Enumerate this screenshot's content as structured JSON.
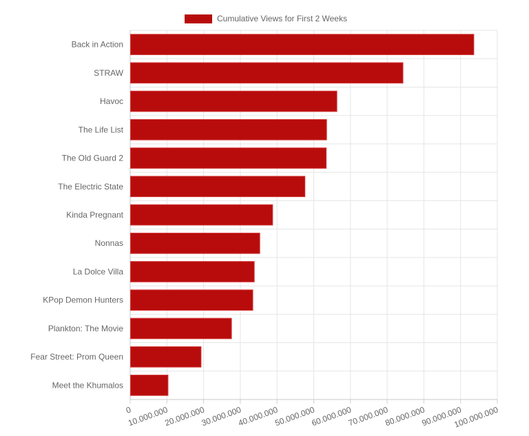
{
  "chart_data": {
    "type": "bar",
    "orientation": "horizontal",
    "title": "",
    "xlabel": "",
    "ylabel": "",
    "legend": {
      "position": "top",
      "label": "Cumulative Views for First 2 Weeks"
    },
    "categories": [
      "Back in Action",
      "STRAW",
      "Havoc",
      "The Life List",
      "The Old Guard 2",
      "The Electric State",
      "Kinda Pregnant",
      "Nonnas",
      "La Dolce Villa",
      "KPop Demon Hunters",
      "Plankton: The Movie",
      "Fear Street: Prom Queen",
      "Meet the Khumalos"
    ],
    "series": [
      {
        "name": "Cumulative Views for First 2 Weeks",
        "values": [
          93600000,
          74300000,
          56300000,
          53500000,
          53400000,
          47600000,
          38800000,
          35300000,
          33800000,
          33400000,
          27600000,
          19300000,
          10300000
        ],
        "color": "#b80c0c"
      }
    ],
    "xlim": [
      0,
      100000000
    ],
    "x_ticks": [
      "0",
      "10.000.000",
      "20.000.000",
      "30.000.000",
      "40.000.000",
      "50.000.000",
      "60.000.000",
      "70.000.000",
      "80.000.000",
      "90.000.000",
      "100.000.000"
    ],
    "grid": true
  }
}
